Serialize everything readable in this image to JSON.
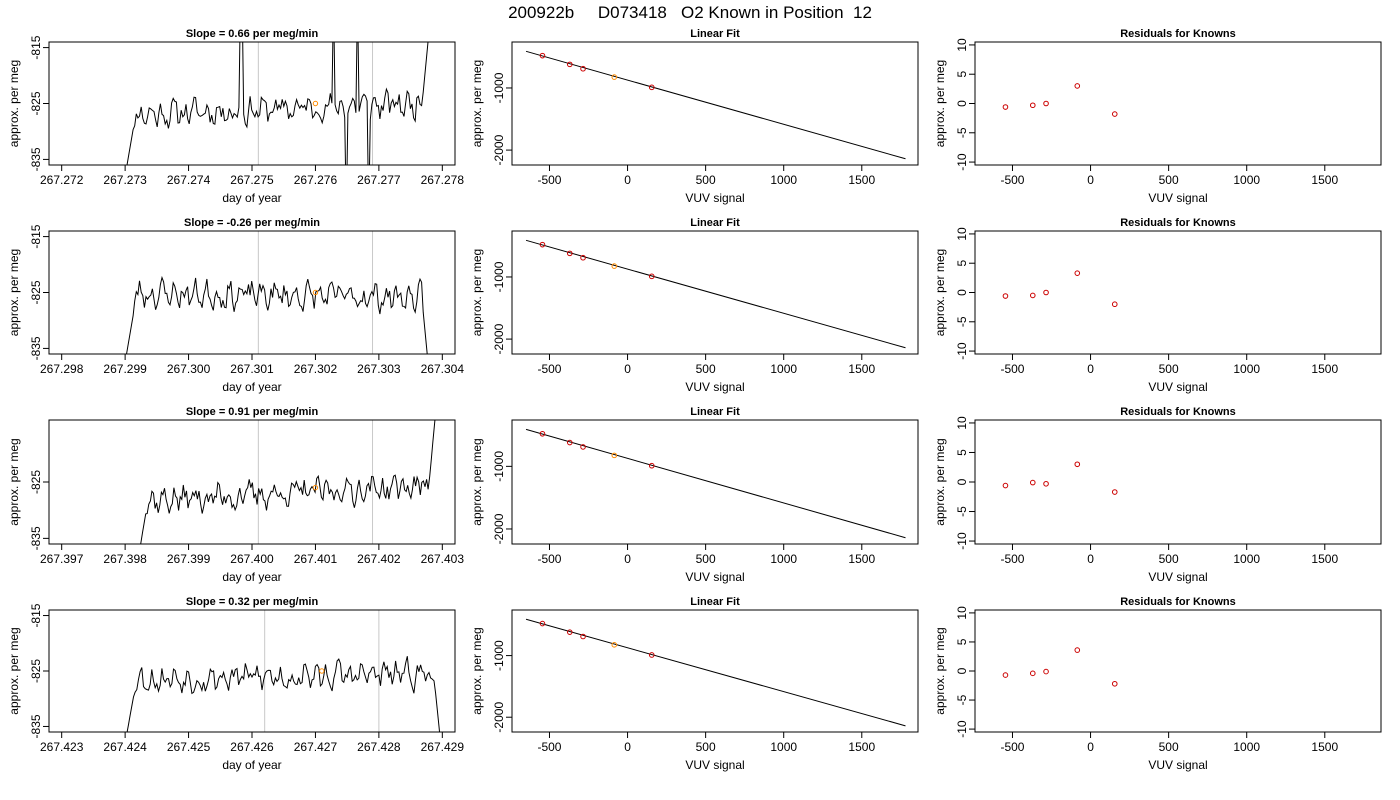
{
  "title": "200922b     D073418   O2 Known in Position  12",
  "colors": {
    "trace": "#000000",
    "known_point": "#ff8c00",
    "residual_point": "#cc0000",
    "vline": "#c8c8c8",
    "fit_point": "#cc0000"
  },
  "chart_data": [
    {
      "row": 1,
      "time_series": {
        "type": "line",
        "title": "Slope =  0.66  per meg/min",
        "xlabel": "day of year",
        "ylabel": "approx. per meg",
        "xlim": [
          267.2718,
          267.2782
        ],
        "ylim": [
          -836,
          -814
        ],
        "xticks": [
          "267.272",
          "267.273",
          "267.274",
          "267.275",
          "267.276",
          "267.277",
          "267.278"
        ],
        "yticks": [
          "-815",
          "-825",
          "-835"
        ],
        "vlines": [
          267.2751,
          267.2769
        ],
        "start": 267.273,
        "end": 267.2778,
        "baseline": -826,
        "trend": 0.66,
        "seed": 11,
        "marker": {
          "x": 267.276,
          "y": -825
        }
      },
      "linear_fit": {
        "type": "scatter",
        "title": "Linear Fit",
        "xlabel": "VUV signal",
        "ylabel": "approx. per meg",
        "xlim": [
          -740,
          1860
        ],
        "ylim": [
          -2240,
          -260
        ],
        "xticks": [
          "-500",
          "0",
          "500",
          "1000",
          "1500"
        ],
        "yticks": [
          "-1000",
          "-2000"
        ],
        "points": [
          [
            -545,
            -480
          ],
          [
            -370,
            -620
          ],
          [
            -285,
            -690
          ],
          [
            -85,
            -825
          ],
          [
            155,
            -990
          ]
        ],
        "highlight_index": 3,
        "line": [
          [
            -650,
            -410
          ],
          [
            1780,
            -2140
          ]
        ]
      },
      "residuals": {
        "type": "scatter",
        "title": "Residuals for Knowns",
        "xlabel": "VUV signal",
        "ylabel": "approx. per meg",
        "xlim": [
          -740,
          1860
        ],
        "ylim": [
          -10.5,
          10.5
        ],
        "xticks": [
          "-500",
          "0",
          "500",
          "1000",
          "1500"
        ],
        "yticks": [
          "10",
          "5",
          "0",
          "-5",
          "-10"
        ],
        "points": [
          [
            -545,
            -0.6
          ],
          [
            -370,
            -0.3
          ],
          [
            -285,
            0.0
          ],
          [
            -85,
            3.0
          ],
          [
            155,
            -1.8
          ]
        ]
      }
    },
    {
      "row": 2,
      "time_series": {
        "type": "line",
        "title": "Slope =  -0.26  per meg/min",
        "xlabel": "day of year",
        "ylabel": "approx. per meg",
        "xlim": [
          267.2978,
          267.3042
        ],
        "ylim": [
          -836,
          -814
        ],
        "xticks": [
          "267.298",
          "267.299",
          "267.300",
          "267.301",
          "267.302",
          "267.303",
          "267.304"
        ],
        "yticks": [
          "-815",
          "-825",
          "-835"
        ],
        "vlines": [
          267.3011,
          267.3029
        ],
        "start": 267.299,
        "end": 267.3038,
        "baseline": -825.5,
        "trend": -0.26,
        "seed": 23,
        "marker": {
          "x": 267.302,
          "y": -825
        }
      },
      "linear_fit": {
        "type": "scatter",
        "title": "Linear Fit",
        "xlabel": "VUV signal",
        "ylabel": "approx. per meg",
        "xlim": [
          -740,
          1860
        ],
        "ylim": [
          -2240,
          -260
        ],
        "xticks": [
          "-500",
          "0",
          "500",
          "1000",
          "1500"
        ],
        "yticks": [
          "-1000",
          "-2000"
        ],
        "points": [
          [
            -545,
            -480
          ],
          [
            -370,
            -620
          ],
          [
            -285,
            -690
          ],
          [
            -85,
            -825
          ],
          [
            155,
            -990
          ]
        ],
        "highlight_index": 3,
        "line": [
          [
            -650,
            -410
          ],
          [
            1780,
            -2140
          ]
        ]
      },
      "residuals": {
        "type": "scatter",
        "title": "Residuals for Knowns",
        "xlabel": "VUV signal",
        "ylabel": "approx. per meg",
        "xlim": [
          -740,
          1860
        ],
        "ylim": [
          -10.5,
          10.5
        ],
        "xticks": [
          "-500",
          "0",
          "500",
          "1000",
          "1500"
        ],
        "yticks": [
          "10",
          "5",
          "0",
          "-5",
          "-10"
        ],
        "points": [
          [
            -545,
            -0.6
          ],
          [
            -370,
            -0.5
          ],
          [
            -285,
            0.0
          ],
          [
            -85,
            3.3
          ],
          [
            155,
            -2.0
          ]
        ]
      }
    },
    {
      "row": 3,
      "time_series": {
        "type": "line",
        "title": "Slope =  0.91  per meg/min",
        "xlabel": "day of year",
        "ylabel": "approx. per meg",
        "xlim": [
          267.3968,
          267.4032
        ],
        "ylim": [
          -836,
          -814
        ],
        "xticks": [
          "267.397",
          "267.398",
          "267.399",
          "267.400",
          "267.401",
          "267.402",
          "267.403"
        ],
        "yticks": [
          "-825",
          "-835"
        ],
        "vlines": [
          267.4001,
          267.4019
        ],
        "start": 267.3982,
        "end": 267.4029,
        "baseline": -827,
        "trend": 0.91,
        "seed": 37,
        "marker": {
          "x": 267.401,
          "y": -826
        }
      },
      "linear_fit": {
        "type": "scatter",
        "title": "Linear Fit",
        "xlabel": "VUV signal",
        "ylabel": "approx. per meg",
        "xlim": [
          -740,
          1860
        ],
        "ylim": [
          -2240,
          -260
        ],
        "xticks": [
          "-500",
          "0",
          "500",
          "1000",
          "1500"
        ],
        "yticks": [
          "-1000",
          "-2000"
        ],
        "points": [
          [
            -545,
            -480
          ],
          [
            -370,
            -620
          ],
          [
            -285,
            -690
          ],
          [
            -85,
            -825
          ],
          [
            155,
            -990
          ]
        ],
        "highlight_index": 3,
        "line": [
          [
            -650,
            -410
          ],
          [
            1780,
            -2140
          ]
        ]
      },
      "residuals": {
        "type": "scatter",
        "title": "Residuals for Knowns",
        "xlabel": "VUV signal",
        "ylabel": "approx. per meg",
        "xlim": [
          -740,
          1860
        ],
        "ylim": [
          -10.5,
          10.5
        ],
        "xticks": [
          "-500",
          "0",
          "500",
          "1000",
          "1500"
        ],
        "yticks": [
          "10",
          "5",
          "0",
          "-5",
          "-10"
        ],
        "points": [
          [
            -545,
            -0.6
          ],
          [
            -370,
            -0.1
          ],
          [
            -285,
            -0.3
          ],
          [
            -85,
            3.0
          ],
          [
            155,
            -1.7
          ]
        ]
      }
    },
    {
      "row": 4,
      "time_series": {
        "type": "line",
        "title": "Slope =  0.32  per meg/min",
        "xlabel": "day of year",
        "ylabel": "approx. per meg",
        "xlim": [
          267.4228,
          267.4292
        ],
        "ylim": [
          -836,
          -814
        ],
        "xticks": [
          "267.423",
          "267.424",
          "267.425",
          "267.426",
          "267.427",
          "267.428",
          "267.429"
        ],
        "yticks": [
          "-815",
          "-825",
          "-835"
        ],
        "vlines": [
          267.4262,
          267.428
        ],
        "start": 267.424,
        "end": 267.429,
        "baseline": -826,
        "trend": 0.32,
        "seed": 53,
        "marker": {
          "x": 267.4271,
          "y": -825
        }
      },
      "linear_fit": {
        "type": "scatter",
        "title": "Linear Fit",
        "xlabel": "VUV signal",
        "ylabel": "approx. per meg",
        "xlim": [
          -740,
          1860
        ],
        "ylim": [
          -2240,
          -260
        ],
        "xticks": [
          "-500",
          "0",
          "500",
          "1000",
          "1500"
        ],
        "yticks": [
          "-1000",
          "-2000"
        ],
        "points": [
          [
            -545,
            -480
          ],
          [
            -370,
            -620
          ],
          [
            -285,
            -690
          ],
          [
            -85,
            -825
          ],
          [
            155,
            -990
          ]
        ],
        "highlight_index": 3,
        "line": [
          [
            -650,
            -410
          ],
          [
            1780,
            -2140
          ]
        ]
      },
      "residuals": {
        "type": "scatter",
        "title": "Residuals for Knowns",
        "xlabel": "VUV signal",
        "ylabel": "approx. per meg",
        "xlim": [
          -740,
          1860
        ],
        "ylim": [
          -10.5,
          10.5
        ],
        "xticks": [
          "-500",
          "0",
          "500",
          "1000",
          "1500"
        ],
        "yticks": [
          "10",
          "5",
          "0",
          "-5",
          "-10"
        ],
        "points": [
          [
            -545,
            -0.7
          ],
          [
            -370,
            -0.4
          ],
          [
            -285,
            -0.1
          ],
          [
            -85,
            3.6
          ],
          [
            155,
            -2.2
          ]
        ]
      }
    }
  ]
}
